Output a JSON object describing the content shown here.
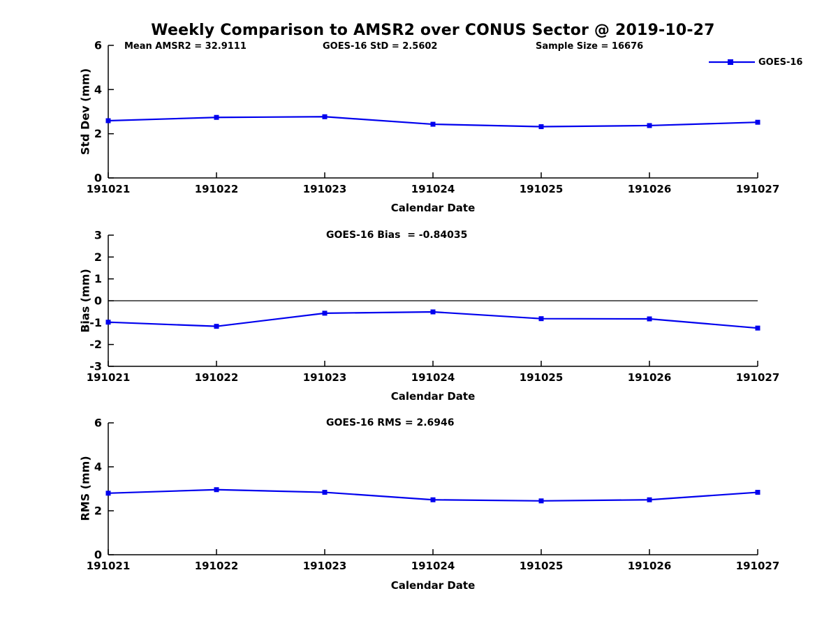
{
  "title": "Weekly Comparison to AMSR2 over CONUS Sector @ 2019-10-27",
  "annotations": {
    "mean_amsr2": "Mean AMSR2 = 32.9111",
    "goes16_std": "GOES-16 StD = 2.5602",
    "sample_size": "Sample Size = 16676"
  },
  "legend": {
    "label": "GOES-16"
  },
  "colors": {
    "series": "#0000ee",
    "axis": "#000000",
    "background": "#ffffff"
  },
  "chart_data": [
    {
      "type": "line",
      "title": "",
      "ylabel": "Std Dev (mm)",
      "xlabel": "Calendar Date",
      "categories": [
        "191021",
        "191022",
        "191023",
        "191024",
        "191025",
        "191026",
        "191027"
      ],
      "series": [
        {
          "name": "GOES-16",
          "values": [
            2.59,
            2.74,
            2.77,
            2.43,
            2.32,
            2.37,
            2.52
          ]
        }
      ],
      "ylim": [
        0,
        6
      ],
      "yticks": [
        0,
        2,
        4,
        6
      ],
      "zero_line": false,
      "grid": false,
      "legend_position": "top-right"
    },
    {
      "type": "line",
      "title": "GOES-16 Bias  = -0.84035",
      "ylabel": "Bias (mm)",
      "xlabel": "Calendar Date",
      "categories": [
        "191021",
        "191022",
        "191023",
        "191024",
        "191025",
        "191026",
        "191027"
      ],
      "series": [
        {
          "name": "GOES-16",
          "values": [
            -0.98,
            -1.17,
            -0.57,
            -0.51,
            -0.82,
            -0.83,
            -1.25
          ]
        }
      ],
      "ylim": [
        -3,
        3
      ],
      "yticks": [
        -3,
        -2,
        -1,
        0,
        1,
        2,
        3
      ],
      "zero_line": true,
      "grid": false,
      "legend_position": "none"
    },
    {
      "type": "line",
      "title": "GOES-16 RMS = 2.6946",
      "ylabel": "RMS (mm)",
      "xlabel": "Calendar Date",
      "categories": [
        "191021",
        "191022",
        "191023",
        "191024",
        "191025",
        "191026",
        "191027"
      ],
      "series": [
        {
          "name": "GOES-16",
          "values": [
            2.8,
            2.96,
            2.84,
            2.5,
            2.45,
            2.5,
            2.84
          ]
        }
      ],
      "ylim": [
        0,
        6
      ],
      "yticks": [
        0,
        2,
        4,
        6
      ],
      "zero_line": false,
      "grid": false,
      "legend_position": "none"
    }
  ]
}
